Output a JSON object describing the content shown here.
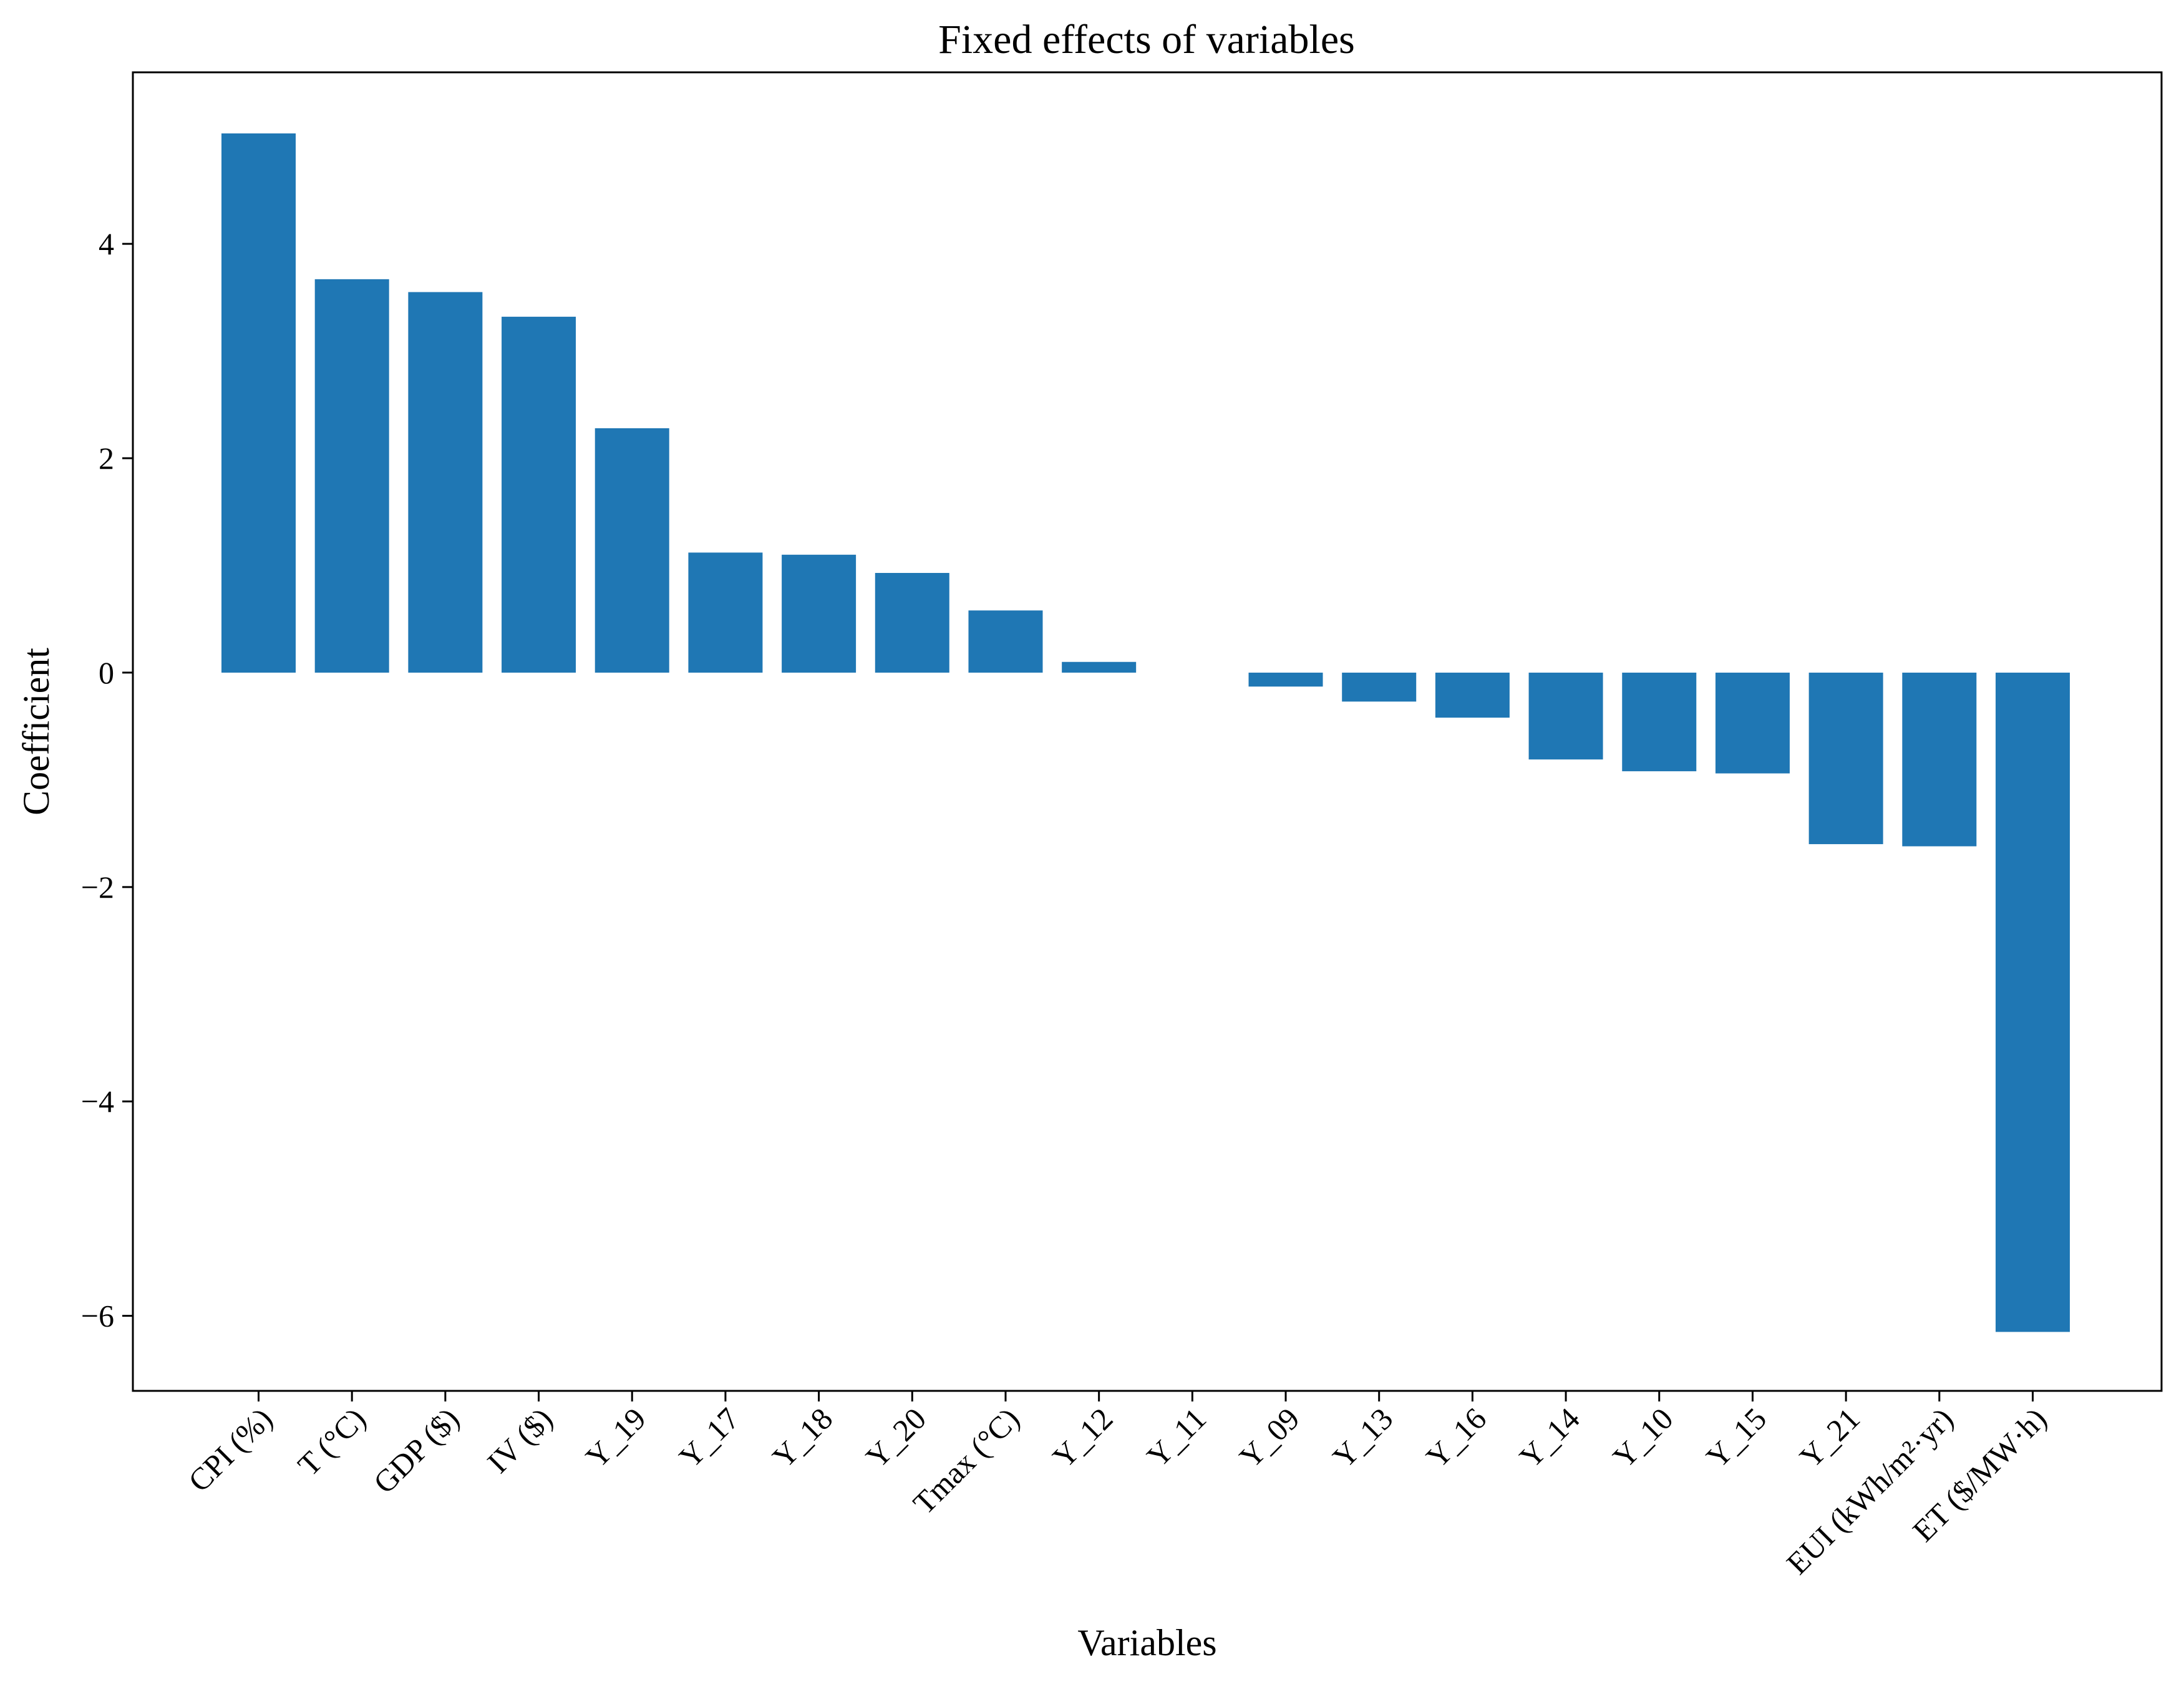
{
  "chart_data": {
    "type": "bar",
    "title": "Fixed effects of variables",
    "xlabel": "Variables",
    "ylabel": "Coefficient",
    "ylim": [
      -6.7,
      5.6
    ],
    "yticks": [
      -6,
      -4,
      -2,
      0,
      2,
      4
    ],
    "ytick_labels": [
      "−6",
      "−4",
      "−2",
      "0",
      "2",
      "4"
    ],
    "grid": false,
    "legend": "none",
    "bar_color": "#1f77b4",
    "categories": [
      "CPI (%)",
      "T (°C)",
      "GDP ($)",
      "IV ($)",
      "Y_19",
      "Y_17",
      "Y_18",
      "Y_20",
      "Tmax (°C)",
      "Y_12",
      "Y_11",
      "Y_09",
      "Y_13",
      "Y_16",
      "Y_14",
      "Y_10",
      "Y_15",
      "Y_21",
      "EUI (kWh/m²·yr)",
      "ET ($/MW·h)"
    ],
    "values": [
      5.03,
      3.67,
      3.55,
      3.32,
      2.28,
      1.12,
      1.1,
      0.93,
      0.58,
      0.1,
      0.0,
      -0.13,
      -0.27,
      -0.42,
      -0.81,
      -0.92,
      -0.94,
      -1.6,
      -1.62,
      -6.15
    ]
  }
}
